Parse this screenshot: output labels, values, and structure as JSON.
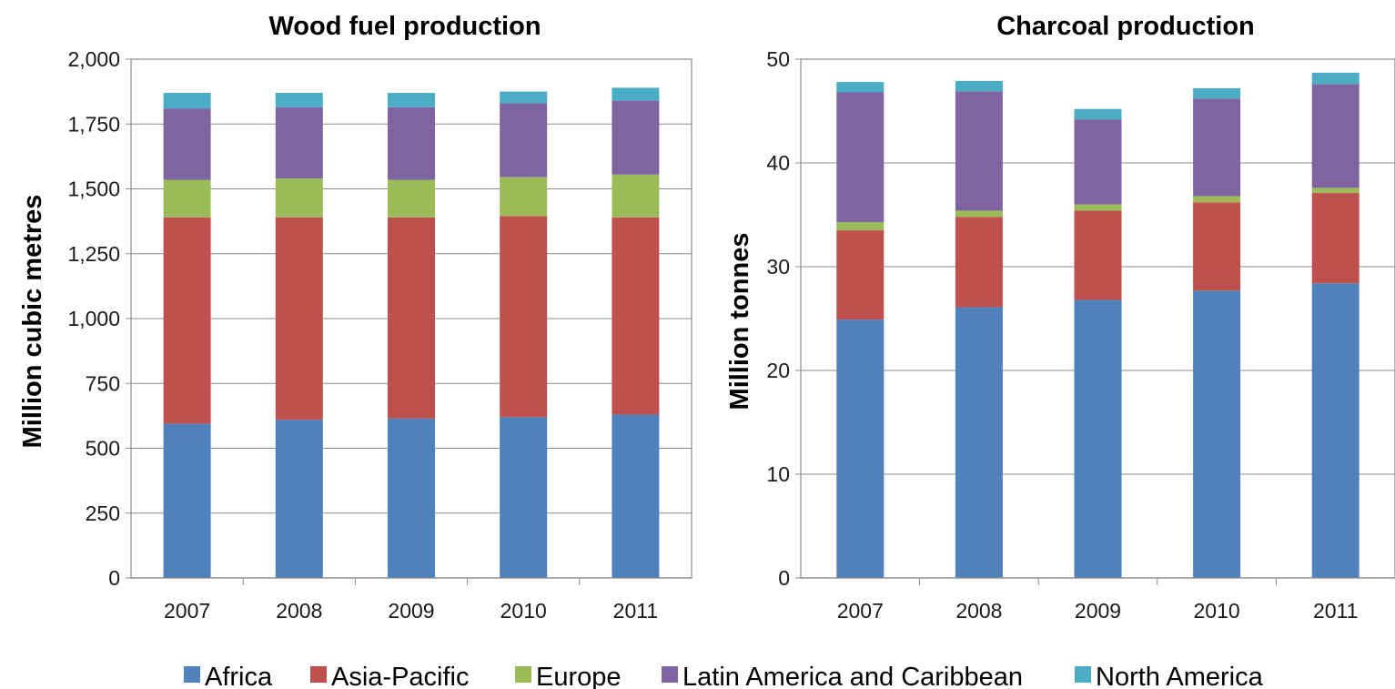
{
  "chart_data": [
    {
      "type": "bar",
      "stacked": true,
      "title": "Wood fuel production",
      "xlabel": "",
      "ylabel": "Million cubic metres",
      "categories": [
        "2007",
        "2008",
        "2009",
        "2010",
        "2011"
      ],
      "ylim": [
        0,
        2000
      ],
      "yticks": [
        "0",
        "250",
        "500",
        "750",
        "1,000",
        "1,250",
        "1,500",
        "1,750",
        "2,000"
      ],
      "grid": true,
      "series": [
        {
          "name": "Africa",
          "color": "#4F81BD",
          "values": [
            595,
            610,
            615,
            620,
            630
          ]
        },
        {
          "name": "Asia-Pacific",
          "color": "#C0504D",
          "values": [
            795,
            780,
            775,
            775,
            760
          ]
        },
        {
          "name": "Europe",
          "color": "#9BBB59",
          "values": [
            145,
            150,
            145,
            150,
            165
          ]
        },
        {
          "name": "Latin America and Caribbean",
          "color": "#8064A2",
          "values": [
            275,
            275,
            280,
            285,
            285
          ]
        },
        {
          "name": "North America",
          "color": "#4BACC6",
          "values": [
            60,
            55,
            55,
            45,
            50
          ]
        }
      ]
    },
    {
      "type": "bar",
      "stacked": true,
      "title": "Charcoal production",
      "xlabel": "",
      "ylabel": "Million tonnes",
      "categories": [
        "2007",
        "2008",
        "2009",
        "2010",
        "2011"
      ],
      "ylim": [
        0,
        50
      ],
      "yticks": [
        "0",
        "10",
        "20",
        "30",
        "40",
        "50"
      ],
      "grid": true,
      "series": [
        {
          "name": "Africa",
          "color": "#4F81BD",
          "values": [
            24.9,
            26.1,
            26.8,
            27.7,
            28.4
          ]
        },
        {
          "name": "Asia-Pacific",
          "color": "#C0504D",
          "values": [
            8.6,
            8.7,
            8.6,
            8.5,
            8.7
          ]
        },
        {
          "name": "Europe",
          "color": "#9BBB59",
          "values": [
            0.8,
            0.6,
            0.6,
            0.6,
            0.5
          ]
        },
        {
          "name": "Latin America and Caribbean",
          "color": "#8064A2",
          "values": [
            12.5,
            11.5,
            8.2,
            9.4,
            10.0
          ]
        },
        {
          "name": "North America",
          "color": "#4BACC6",
          "values": [
            1.0,
            1.0,
            1.0,
            1.0,
            1.1
          ]
        }
      ]
    }
  ],
  "legend": {
    "placement": "bottom",
    "items": [
      {
        "label": "Africa",
        "color": "#4F81BD"
      },
      {
        "label": "Asia-Pacific",
        "color": "#C0504D"
      },
      {
        "label": "Europe",
        "color": "#9BBB59"
      },
      {
        "label": "Latin America and Caribbean",
        "color": "#8064A2"
      },
      {
        "label": "North America",
        "color": "#4BACC6"
      }
    ]
  }
}
